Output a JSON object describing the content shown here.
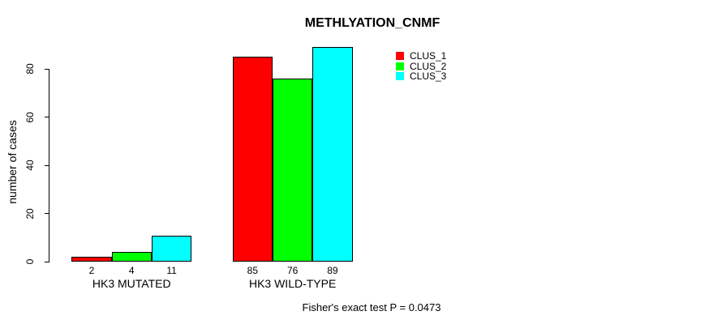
{
  "title": "METHLYATION_CNMF",
  "footer_note": "Fisher's exact test P = 0.0473",
  "chart_data": {
    "type": "bar",
    "title": "METHLYATION_CNMF",
    "xlabel": "",
    "ylabel": "number of cases",
    "categories": [
      "HK3 MUTATED",
      "HK3 WILD-TYPE"
    ],
    "series": [
      {
        "name": "CLUS_1",
        "color": "#ff0000",
        "values": [
          2,
          85
        ]
      },
      {
        "name": "CLUS_2",
        "color": "#00ff00",
        "values": [
          4,
          76
        ]
      },
      {
        "name": "CLUS_3",
        "color": "#00ffff",
        "values": [
          11,
          89
        ]
      }
    ],
    "bar_value_labels": [
      [
        "2",
        "4",
        "11"
      ],
      [
        "85",
        "76",
        "89"
      ]
    ],
    "y_ticks": [
      0,
      20,
      40,
      60,
      80
    ],
    "ylim": [
      0,
      80
    ],
    "grid": false,
    "bar_border_color": "#000000",
    "legend": {
      "position": "top-right-inside",
      "entries": [
        "CLUS_1",
        "CLUS_2",
        "CLUS_3"
      ],
      "colors": [
        "#ff0000",
        "#00ff00",
        "#00ffff"
      ]
    },
    "annotation": "Fisher's exact test P = 0.0473"
  }
}
